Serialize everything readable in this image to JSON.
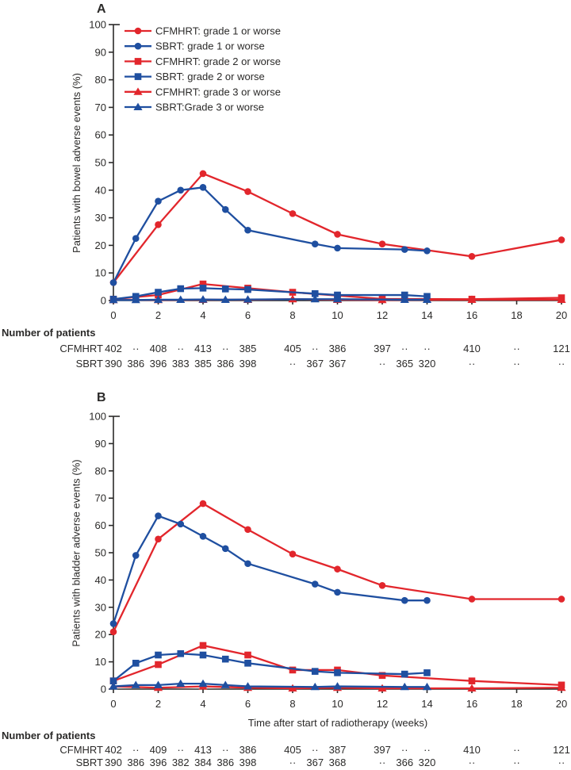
{
  "colors": {
    "cfmhrt_red": "#e2262c",
    "sbrt_blue": "#1f4fa0",
    "axis_text": "#2b2a29"
  },
  "xlabel_shared": "Time after start of radiotherapy (weeks)",
  "chart_data": [
    {
      "type": "line",
      "panel": "A",
      "ylabel": "Patients with bowel adverse events (%)",
      "xlabel": "",
      "ylim": [
        0,
        100
      ],
      "xlim": [
        0,
        20
      ],
      "yticks": [
        0,
        10,
        20,
        30,
        40,
        50,
        60,
        70,
        80,
        90,
        100
      ],
      "xticks": [
        0,
        2,
        4,
        6,
        8,
        10,
        12,
        14,
        16,
        18,
        20
      ],
      "grid": false,
      "legend_position": "top-left-inside",
      "show_legend": true,
      "series": [
        {
          "name": "CFMHRT: grade 1 or worse",
          "color": "#e2262c",
          "marker": "circle",
          "x": [
            0,
            2,
            4,
            6,
            8,
            10,
            12,
            16,
            20
          ],
          "y": [
            6.5,
            27.5,
            46,
            39.5,
            31.5,
            24,
            20.5,
            16,
            22
          ]
        },
        {
          "name": "SBRT: grade 1 or worse",
          "color": "#1f4fa0",
          "marker": "circle",
          "x": [
            0,
            1,
            2,
            3,
            4,
            5,
            6,
            9,
            10,
            13,
            14
          ],
          "y": [
            6.5,
            22.5,
            36,
            40,
            41,
            33,
            25.5,
            20.5,
            19,
            18.5,
            18
          ]
        },
        {
          "name": "CFMHRT: grade 2 or worse",
          "color": "#e2262c",
          "marker": "square",
          "x": [
            0,
            2,
            4,
            6,
            8,
            10,
            12,
            16,
            20
          ],
          "y": [
            0.5,
            2,
            6,
            4.5,
            3,
            1.8,
            0.6,
            0.5,
            1
          ]
        },
        {
          "name": "SBRT: grade 2 or worse",
          "color": "#1f4fa0",
          "marker": "square",
          "x": [
            0,
            1,
            2,
            3,
            4,
            5,
            6,
            9,
            10,
            13,
            14
          ],
          "y": [
            0.5,
            1.5,
            3,
            4.3,
            4.5,
            4.2,
            4,
            2.5,
            2,
            2,
            1.5
          ]
        },
        {
          "name": "CFMHRT: grade 3 or worse",
          "color": "#e2262c",
          "marker": "triangle",
          "x": [
            0,
            2,
            4,
            6,
            8,
            10,
            12,
            16,
            20
          ],
          "y": [
            0.2,
            0.2,
            0.3,
            0.3,
            0.5,
            0.3,
            0.2,
            0.3,
            0.3
          ]
        },
        {
          "name": "SBRT:Grade 3 or worse",
          "color": "#1f4fa0",
          "marker": "triangle",
          "x": [
            0,
            1,
            2,
            3,
            4,
            5,
            6,
            9,
            10,
            13,
            14
          ],
          "y": [
            0.2,
            0.2,
            0.3,
            0.3,
            0.4,
            0.3,
            0.4,
            0.5,
            0.5,
            0.3,
            0.3
          ]
        }
      ],
      "patients": {
        "header": "Number of patients",
        "weeks": [
          0,
          1,
          2,
          3,
          4,
          5,
          6,
          8,
          9,
          10,
          12,
          13,
          14,
          16,
          18,
          20
        ],
        "rows": [
          {
            "label": "CFMHRT",
            "values": [
              "402",
              "··",
              "408",
              "··",
              "413",
              "··",
              "385",
              "405",
              "··",
              "386",
              "397",
              "··",
              "··",
              "410",
              "··",
              "121"
            ]
          },
          {
            "label": "SBRT",
            "values": [
              "390",
              "386",
              "396",
              "383",
              "385",
              "386",
              "398",
              "··",
              "367",
              "367",
              "··",
              "365",
              "320",
              "··",
              "··",
              "··"
            ]
          }
        ]
      }
    },
    {
      "type": "line",
      "panel": "B",
      "ylabel": "Patients with bladder adverse events (%)",
      "xlabel": "Time after start of radiotherapy (weeks)",
      "ylim": [
        0,
        100
      ],
      "xlim": [
        0,
        20
      ],
      "yticks": [
        0,
        10,
        20,
        30,
        40,
        50,
        60,
        70,
        80,
        90,
        100
      ],
      "xticks": [
        0,
        2,
        4,
        6,
        8,
        10,
        12,
        14,
        16,
        18,
        20
      ],
      "grid": false,
      "legend_position": "none",
      "show_legend": false,
      "series": [
        {
          "name": "CFMHRT: grade 1 or worse",
          "color": "#e2262c",
          "marker": "circle",
          "x": [
            0,
            2,
            4,
            6,
            8,
            10,
            12,
            16,
            20
          ],
          "y": [
            21,
            55,
            68,
            58.5,
            49.5,
            44,
            38,
            33,
            33
          ]
        },
        {
          "name": "SBRT: grade 1 or worse",
          "color": "#1f4fa0",
          "marker": "circle",
          "x": [
            0,
            1,
            2,
            3,
            4,
            5,
            6,
            9,
            10,
            13,
            14
          ],
          "y": [
            24,
            49,
            63.5,
            60.5,
            56,
            51.5,
            46,
            38.5,
            35.5,
            32.5,
            32.5
          ]
        },
        {
          "name": "CFMHRT: grade 2 or worse",
          "color": "#e2262c",
          "marker": "square",
          "x": [
            0,
            2,
            4,
            6,
            8,
            10,
            12,
            16,
            20
          ],
          "y": [
            3,
            9,
            16,
            12.5,
            7,
            7,
            5,
            3,
            1.5
          ]
        },
        {
          "name": "SBRT: grade 2 or worse",
          "color": "#1f4fa0",
          "marker": "square",
          "x": [
            0,
            1,
            2,
            3,
            4,
            5,
            6,
            9,
            10,
            13,
            14
          ],
          "y": [
            3,
            9.5,
            12.5,
            13,
            12.5,
            11,
            9.5,
            6.5,
            6,
            5.5,
            6
          ]
        },
        {
          "name": "CFMHRT: grade 3 or worse",
          "color": "#e2262c",
          "marker": "triangle",
          "x": [
            0,
            2,
            4,
            6,
            8,
            10,
            12,
            16,
            20
          ],
          "y": [
            1,
            0.5,
            1,
            0.5,
            0.3,
            0.5,
            0.3,
            0.3,
            0.5
          ]
        },
        {
          "name": "SBRT:Grade 3 or worse",
          "color": "#1f4fa0",
          "marker": "triangle",
          "x": [
            0,
            1,
            2,
            3,
            4,
            5,
            6,
            9,
            10,
            13,
            14
          ],
          "y": [
            1,
            1.5,
            1.5,
            2,
            2,
            1.5,
            1,
            0.8,
            1,
            0.8,
            0.8
          ]
        }
      ],
      "patients": {
        "header": "Number of patients",
        "weeks": [
          0,
          1,
          2,
          3,
          4,
          5,
          6,
          8,
          9,
          10,
          12,
          13,
          14,
          16,
          18,
          20
        ],
        "rows": [
          {
            "label": "CFMHRT",
            "values": [
              "402",
              "··",
              "409",
              "··",
              "413",
              "··",
              "386",
              "405",
              "··",
              "387",
              "397",
              "··",
              "··",
              "410",
              "··",
              "121"
            ]
          },
          {
            "label": "SBRT",
            "values": [
              "390",
              "386",
              "396",
              "382",
              "384",
              "386",
              "398",
              "··",
              "367",
              "368",
              "··",
              "366",
              "320",
              "··",
              "··",
              "··"
            ]
          }
        ]
      }
    }
  ]
}
